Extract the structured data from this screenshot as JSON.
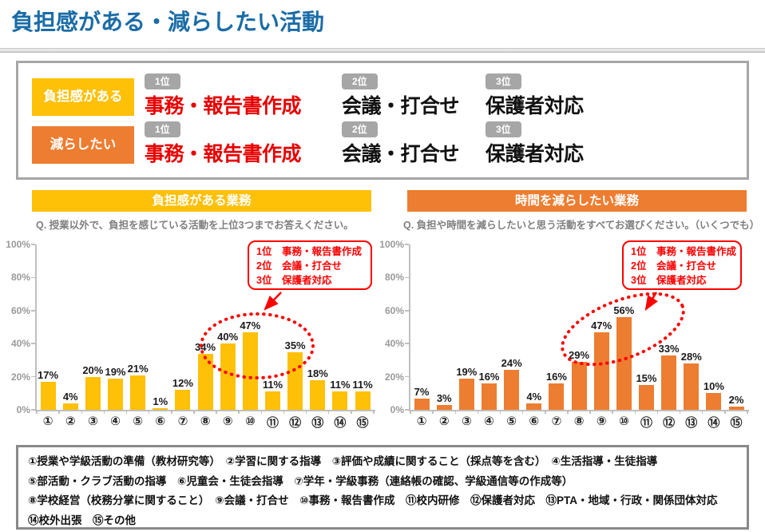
{
  "title": "負担感がある・減らしたい活動",
  "colors": {
    "title_blue": "#1A6CA6",
    "yellow": "#FFC008",
    "orange": "#ED7D31",
    "badge_gray": "#A6A6A6",
    "red_accent": "#FF0000",
    "red_text": "#E80000",
    "axis_gray": "#BFBFBF",
    "question_gray": "#7F7F7F"
  },
  "summary": {
    "rows": [
      {
        "label": "負担感がある",
        "ranks": [
          {
            "badge": "1位",
            "text": "事務・報告書作成"
          },
          {
            "badge": "2位",
            "text": "会議・打合せ"
          },
          {
            "badge": "3位",
            "text": "保護者対応"
          }
        ]
      },
      {
        "label": "減らしたい",
        "ranks": [
          {
            "badge": "1位",
            "text": "事務・報告書作成"
          },
          {
            "badge": "2位",
            "text": "会議・打合せ"
          },
          {
            "badge": "3位",
            "text": "保護者対応"
          }
        ]
      }
    ]
  },
  "charts": [
    {
      "header": "負担感がある業務",
      "question": "Q. 授業以外で、負担を感じている活動を上位3つまでお答えください。",
      "bar_color": "#FFC008",
      "y_ticks": [
        "100%",
        "80%",
        "60%",
        "40%",
        "20%",
        "0%"
      ],
      "annotation": [
        "1位　事務・報告書作成",
        "2位　会議・打合せ",
        "3位　保護者対応"
      ]
    },
    {
      "header": "時間を減らしたい業務",
      "question": "Q. 負担や時間を減らしたいと思う活動をすべてお選びください。（いくつでも）",
      "bar_color": "#ED7D31",
      "y_ticks": [
        "100%",
        "80%",
        "60%",
        "40%",
        "20%",
        "0%"
      ],
      "annotation": [
        "1位　事務・報告書作成",
        "2位　会議・打合せ",
        "3位　保護者対応"
      ]
    }
  ],
  "chart_data": [
    {
      "type": "bar",
      "title": "負担感がある業務",
      "categories": [
        "①",
        "②",
        "③",
        "④",
        "⑤",
        "⑥",
        "⑦",
        "⑧",
        "⑨",
        "⑩",
        "⑪",
        "⑫",
        "⑬",
        "⑭",
        "⑮"
      ],
      "values": [
        17,
        4,
        20,
        19,
        21,
        1,
        12,
        34,
        40,
        47,
        11,
        35,
        18,
        11,
        11
      ],
      "unit": "%",
      "xlabel": "",
      "ylabel": "",
      "ylim": [
        0,
        100
      ],
      "grid": false,
      "legend_position": "none"
    },
    {
      "type": "bar",
      "title": "時間を減らしたい業務",
      "categories": [
        "①",
        "②",
        "③",
        "④",
        "⑤",
        "⑥",
        "⑦",
        "⑧",
        "⑨",
        "⑩",
        "⑪",
        "⑫",
        "⑬",
        "⑭",
        "⑮"
      ],
      "values": [
        7,
        3,
        19,
        16,
        24,
        4,
        16,
        29,
        47,
        56,
        15,
        33,
        28,
        10,
        2
      ],
      "unit": "%",
      "xlabel": "",
      "ylabel": "",
      "ylim": [
        0,
        100
      ],
      "grid": false,
      "legend_position": "none"
    }
  ],
  "legend": {
    "lines": [
      "①授業や学級活動の準備（教材研究等）　②学習に関する指導　③評価や成績に関すること（採点等を含む）　④生活指導・生徒指導",
      "⑤部活動・クラブ活動の指導　⑥児童会・生徒会指導　⑦学年・学級事務（連絡帳の確認、学級通信等の作成等）",
      "⑧学校経営（校務分掌に関すること）　⑨会議・打合せ　⑩事務・報告書作成　⑪校内研修　⑫保護者対応　⑬PTA・地域・行政・関係団体対応",
      "⑭校外出張　⑮その他"
    ]
  }
}
